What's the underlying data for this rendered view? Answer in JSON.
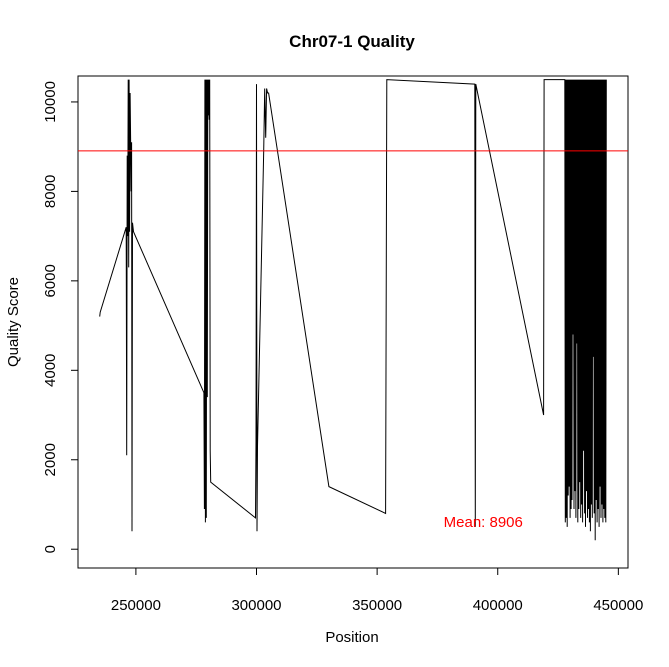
{
  "chart_data": {
    "type": "line",
    "title": "Chr07-1 Quality",
    "xlabel": "Position",
    "ylabel": "Quality Score",
    "xlim": [
      226000,
      454000
    ],
    "ylim": [
      -420,
      10580
    ],
    "xticks": [
      250000,
      300000,
      350000,
      400000,
      450000
    ],
    "yticks": [
      0,
      2000,
      4000,
      6000,
      8000,
      10000
    ],
    "grid": false,
    "line_color": "#000000",
    "mean_line": {
      "value": 8906,
      "color": "#ff0000"
    },
    "annotation": {
      "text": "Mean: 8906",
      "x": 394000,
      "y": 500,
      "color": "#ff0000"
    },
    "series": [
      {
        "x": [
          235000,
          235200,
          246000,
          246200,
          246400,
          246600,
          246800,
          247000,
          247200,
          247400,
          247600,
          247800,
          248000,
          248200,
          248400,
          248600,
          249000,
          278200,
          278400,
          278600,
          278800,
          279000,
          279200,
          279400,
          279600,
          279800,
          280000,
          280200,
          280400,
          280600,
          280800,
          281000,
          299600,
          299800,
          300000,
          300200,
          300400,
          303000,
          303400,
          303800,
          304200,
          304600,
          305000,
          330000,
          353500,
          354000,
          390500,
          390700,
          390900,
          419000,
          419200,
          419400,
          427800,
          428000,
          428200,
          428400,
          428600,
          428800,
          429000,
          429200,
          429400,
          429600,
          429800,
          430000,
          430200,
          430400,
          430600,
          430800,
          431000,
          431200,
          431400,
          431600,
          431800,
          432000,
          432200,
          432400,
          432600,
          432800,
          433000,
          433200,
          433400,
          433600,
          433800,
          434000,
          434200,
          434400,
          434600,
          434800,
          435000,
          435200,
          435400,
          435600,
          435800,
          436000,
          436200,
          436400,
          436600,
          436800,
          437000,
          437200,
          437400,
          437600,
          437800,
          438000,
          438200,
          438400,
          438600,
          438800,
          439000,
          439200,
          439400,
          439600,
          439800,
          440000,
          440200,
          440400,
          440600,
          440800,
          441000,
          441200,
          441400,
          441600,
          441800,
          442000,
          442200,
          442400,
          442600,
          442800,
          443000,
          443200,
          443400,
          443600,
          443800,
          444000,
          444200,
          444400,
          444600,
          444800,
          445000
        ],
        "y": [
          5200,
          5300,
          7200,
          2100,
          8800,
          7000,
          10500,
          6300,
          10500,
          7100,
          10200,
          9200,
          8000,
          9100,
          400,
          7300,
          7100,
          3500,
          900,
          10500,
          600,
          10500,
          700,
          10500,
          3400,
          10500,
          9700,
          10500,
          9600,
          10500,
          2200,
          1500,
          700,
          2400,
          10400,
          400,
          2300,
          8900,
          10300,
          9200,
          10300,
          10200,
          10200,
          1400,
          800,
          10500,
          10400,
          500,
          10400,
          3000,
          10500,
          10500,
          10500,
          600,
          10500,
          700,
          10500,
          500,
          10500,
          1200,
          10500,
          1400,
          10500,
          700,
          10500,
          900,
          10500,
          1100,
          10500,
          4800,
          10500,
          900,
          10500,
          1300,
          10500,
          700,
          10500,
          4600,
          10500,
          600,
          10500,
          900,
          10500,
          1500,
          10500,
          700,
          10500,
          1000,
          10500,
          600,
          10500,
          2200,
          10500,
          800,
          10500,
          500,
          10500,
          1300,
          10500,
          700,
          10500,
          900,
          10500,
          600,
          10500,
          400,
          10500,
          1000,
          10500,
          700,
          10500,
          4300,
          10500,
          800,
          10500,
          200,
          10500,
          1100,
          10500,
          600,
          10500,
          900,
          10500,
          500,
          10500,
          1400,
          10500,
          700,
          10500,
          1000,
          10500,
          600,
          10500,
          900,
          10500,
          700,
          10500,
          600,
          10500
        ]
      }
    ]
  }
}
